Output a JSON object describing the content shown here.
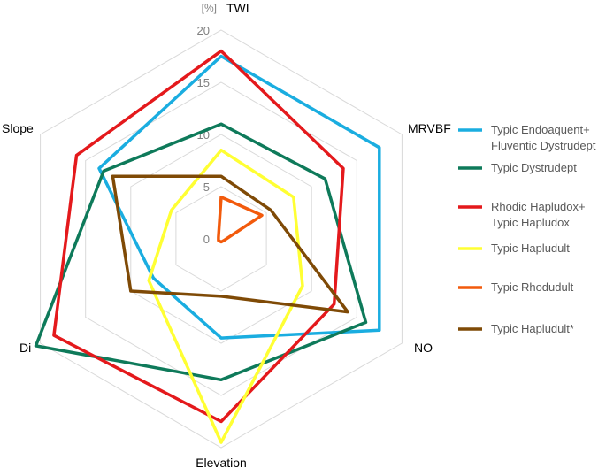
{
  "chart_data": {
    "type": "radar",
    "unit": "[%]",
    "axes": [
      "TWI",
      "MRVBF",
      "NO",
      "Elevation",
      "Di",
      "Slope"
    ],
    "range": [
      0,
      20
    ],
    "ticks": [
      0,
      5,
      10,
      15,
      20
    ],
    "grid": true,
    "legend_position": "right",
    "series": [
      {
        "name": "Typic Endoaquent+\nFluventic Dystrudept",
        "color": "#1AADE0",
        "values": [
          17.5,
          17.5,
          17.5,
          9.5,
          7.5,
          13.5
        ]
      },
      {
        "name": "Typic Dystrudept",
        "color": "#0E7A5A",
        "values": [
          11.0,
          11.5,
          16.0,
          13.5,
          20.5,
          13.0
        ]
      },
      {
        "name": "Rhodic Hapludox+\nTypic Hapludox",
        "color": "#E4191C",
        "values": [
          18.0,
          13.5,
          12.5,
          17.5,
          18.5,
          16.0
        ]
      },
      {
        "name": "Typic Hapludult",
        "color": "#FFFF33",
        "values": [
          8.5,
          8.0,
          9.0,
          19.5,
          8.0,
          5.5
        ]
      },
      {
        "name": "Typic Rhodudult",
        "color": "#F25A0C",
        "values": [
          4.0,
          4.5,
          0.3,
          0.3,
          0.3,
          0.3
        ]
      },
      {
        "name": "Typic Hapludult*",
        "color": "#7F4A06",
        "values": [
          6.0,
          5.5,
          14.0,
          5.5,
          10.0,
          12.0
        ]
      }
    ]
  }
}
